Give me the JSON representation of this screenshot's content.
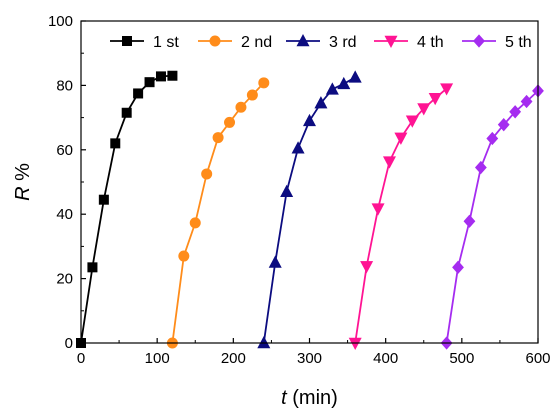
{
  "chart_data": {
    "type": "line",
    "xlabel": {
      "var": "t",
      "unit": " (min)"
    },
    "ylabel": {
      "var": "R",
      "unit": " %"
    },
    "xlim": [
      0,
      600
    ],
    "ylim": [
      0,
      100
    ],
    "x_ticks": [
      0,
      100,
      200,
      300,
      400,
      500,
      600
    ],
    "y_ticks": [
      0,
      20,
      40,
      60,
      80,
      100
    ],
    "grid": false,
    "legend_position": "top",
    "series": [
      {
        "name": "1 st",
        "color": "#000000",
        "marker": "square",
        "x": [
          0,
          15,
          30,
          45,
          60,
          75,
          90,
          105,
          120
        ],
        "y": [
          0,
          23.5,
          44.5,
          62,
          71.5,
          77.5,
          81,
          82.8,
          83
        ]
      },
      {
        "name": "2 nd",
        "color": "#ff8c1a",
        "marker": "circle",
        "x": [
          120,
          135,
          150,
          165,
          180,
          195,
          210,
          225,
          240
        ],
        "y": [
          0,
          27,
          37.3,
          52.5,
          63.8,
          68.5,
          73.2,
          77,
          80.8
        ]
      },
      {
        "name": "3 rd",
        "color": "#0c0c80",
        "marker": "triangle-up",
        "x": [
          240,
          255,
          270,
          285,
          300,
          315,
          330,
          345,
          360
        ],
        "y": [
          0,
          25,
          47,
          60.5,
          69,
          74.5,
          78.8,
          80.5,
          82.5
        ]
      },
      {
        "name": "4 th",
        "color": "#ff1493",
        "marker": "triangle-down",
        "x": [
          360,
          375,
          390,
          405,
          420,
          435,
          450,
          465,
          480
        ],
        "y": [
          0,
          23.8,
          41.7,
          56.3,
          63.7,
          69,
          72.8,
          76,
          79
        ]
      },
      {
        "name": "5 th",
        "color": "#a52cf0",
        "marker": "diamond",
        "x": [
          480,
          495,
          510,
          525,
          540,
          555,
          570,
          585,
          600
        ],
        "y": [
          0,
          23.5,
          37.8,
          54.5,
          63.5,
          67.8,
          71.8,
          75,
          78.3
        ]
      }
    ]
  }
}
